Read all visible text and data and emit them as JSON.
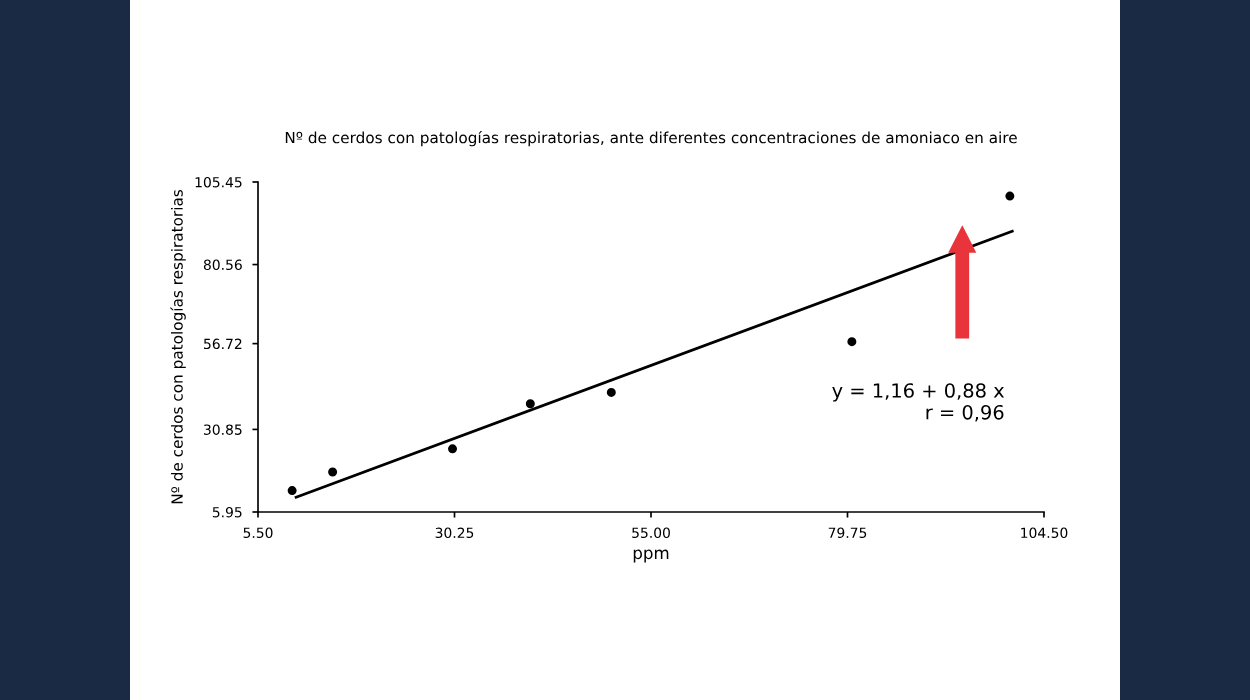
{
  "chart_data": {
    "type": "scatter",
    "title": "Nº de cerdos con patologías respiratorias, ante diferentes concentraciones de amoniaco en aire",
    "xlabel": "ppm",
    "ylabel": "Nº de cerdos con patologías respiratorias",
    "series": [
      {
        "marker": "circle",
        "color": "#000000",
        "x": [
          9.8,
          14.9,
          30.0,
          39.8,
          50.0,
          80.3,
          100.2
        ],
        "values": [
          12.4,
          18.0,
          25.0,
          38.6,
          42.0,
          57.3,
          101.2
        ]
      },
      {
        "type": "line",
        "marker": "none",
        "color": "#000000",
        "x": [
          10.3,
          100.5
        ],
        "values": [
          10.4,
          90.6
        ]
      }
    ],
    "annotations": [
      "y = 1,16 + 0,88 x\nr = 0,96"
    ],
    "xlim": [
      5.5,
      104.5
    ],
    "ylim": [
      5.95,
      105.45
    ],
    "xticks": [
      {
        "value": 5.5,
        "label": "5.50"
      },
      {
        "value": 30.25,
        "label": "30.25"
      },
      {
        "value": 55,
        "label": "55.00"
      },
      {
        "value": 79.75,
        "label": "79.75"
      },
      {
        "value": 104.5,
        "label": "104.50"
      }
    ],
    "yticks": [
      {
        "value": 5.95,
        "label": "5.95"
      },
      {
        "value": 30.85,
        "label": "30.85"
      },
      {
        "value": 56.72,
        "label": "56.72"
      },
      {
        "value": 80.56,
        "label": "80.56"
      },
      {
        "value": 105.45,
        "label": "105.45"
      }
    ],
    "grid": false,
    "legend": false
  }
}
